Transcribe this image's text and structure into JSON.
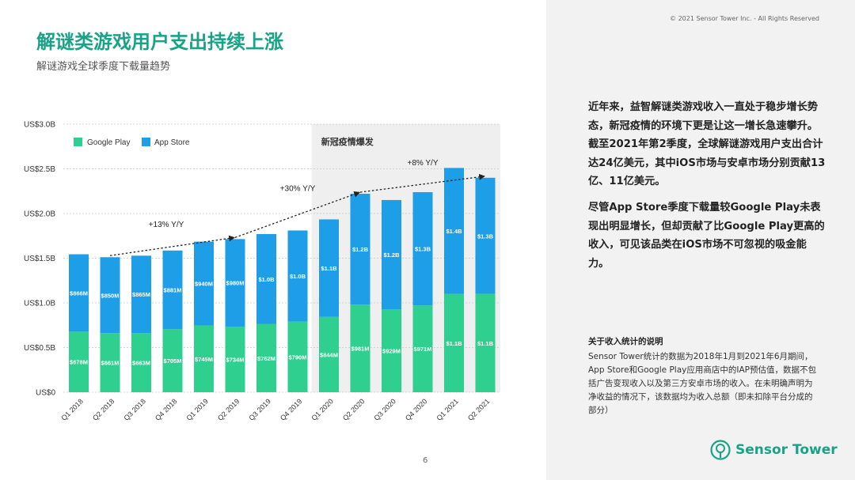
{
  "copyright": "© 2021 Sensor Tower Inc. - All Rights Reserved",
  "title": "解谜类游戏用户支出持续上涨",
  "subtitle": "解谜游戏全球季度下载量趋势",
  "paragraph1": "近年来，益智解谜类游戏收入一直处于稳步增长势态，新冠疫情的环境下更是让这一增长急速攀升。截至2021年第2季度，全球解谜游戏用户支出合计达24亿美元，其中iOS市场与安卓市场分别贡献13亿、11亿美元。",
  "paragraph2": "尽管App Store季度下载量较Google Play未表现出明显增长，但却贡献了比Google Play更高的收入，可见该品类在iOS市场不可忽视的吸金能力。",
  "note_title": "关于收入统计的说明",
  "note_body": "Sensor Tower统计的数据为2018年1月到2021年6月期间，App Store和Google Play应用商店中的IAP预估值，数据不包括广告变现收入以及第三方安卓市场的收入。在未明确声明为净收益的情况下，该数据均为收入总额（即未扣除平台分成的部分）",
  "page_number": "6",
  "logo": {
    "text": "Sensor Tower",
    "icon": "sensor-tower-logo-icon"
  },
  "colors": {
    "accent": "#19a386",
    "google_play": "#2ecf8f",
    "app_store": "#1f9ee8",
    "covid_band": "#efefef"
  },
  "chart_data": {
    "type": "bar",
    "stacked": true,
    "categories": [
      "Q1 2018",
      "Q2 2018",
      "Q3 2018",
      "Q4 2018",
      "Q1 2019",
      "Q2 2019",
      "Q3 2019",
      "Q4 2019",
      "Q1 2020",
      "Q2 2020",
      "Q3 2020",
      "Q4 2020",
      "Q1 2021",
      "Q2 2021"
    ],
    "series": [
      {
        "name": "Google Play",
        "color": "#2ecf8f",
        "values": [
          0.678,
          0.661,
          0.663,
          0.705,
          0.745,
          0.734,
          0.762,
          0.79,
          0.844,
          0.981,
          0.929,
          0.971,
          1.1,
          1.1
        ],
        "labels": [
          "$678M",
          "$661M",
          "$663M",
          "$705M",
          "$745M",
          "$734M",
          "$762M",
          "$790M",
          "$844M",
          "$981M",
          "$929M",
          "$971M",
          "$1.1B",
          "$1.1B"
        ]
      },
      {
        "name": "App Store",
        "color": "#1f9ee8",
        "values": [
          0.866,
          0.85,
          0.865,
          0.881,
          0.94,
          0.98,
          1.0,
          1.0,
          1.1,
          1.2,
          1.2,
          1.3,
          1.4,
          1.3
        ],
        "labels": [
          "$866M",
          "$850M",
          "$865M",
          "$881M",
          "$940M",
          "$980M",
          "$1.0B",
          "$1.0B",
          "$1.1B",
          "$1.2B",
          "$1.2B",
          "$1.3B",
          "$1.4B",
          "$1.3B"
        ]
      }
    ],
    "totals": [
      1.544,
      1.511,
      1.528,
      1.586,
      1.685,
      1.714,
      1.77,
      1.81,
      1.934,
      2.221,
      2.151,
      2.239,
      2.51,
      2.4
    ],
    "ylim": [
      0,
      3.0
    ],
    "yticks": [
      0,
      0.5,
      1.0,
      1.5,
      2.0,
      2.5,
      3.0
    ],
    "ytick_labels": [
      "US$0",
      "US$0.5B",
      "US$1.0B",
      "US$1.5B",
      "US$2.0B",
      "US$2.5B",
      "US$3.0B"
    ],
    "grid": true,
    "legend_position": "top-left",
    "covid_band": {
      "label": "新冠疫情爆发",
      "from_category": "Q1 2020",
      "to_category": "Q2 2021"
    },
    "trend_annotations": [
      {
        "label": "+13% Y/Y",
        "from_category": "Q2 2018",
        "to_category": "Q2 2019",
        "from_value": 1.511,
        "to_value": 1.714
      },
      {
        "label": "+30% Y/Y",
        "from_category": "Q2 2019",
        "to_category": "Q2 2020",
        "from_value": 1.714,
        "to_value": 2.221
      },
      {
        "label": "+8% Y/Y",
        "from_category": "Q2 2020",
        "to_category": "Q2 2021",
        "from_value": 2.221,
        "to_value": 2.4
      }
    ]
  }
}
